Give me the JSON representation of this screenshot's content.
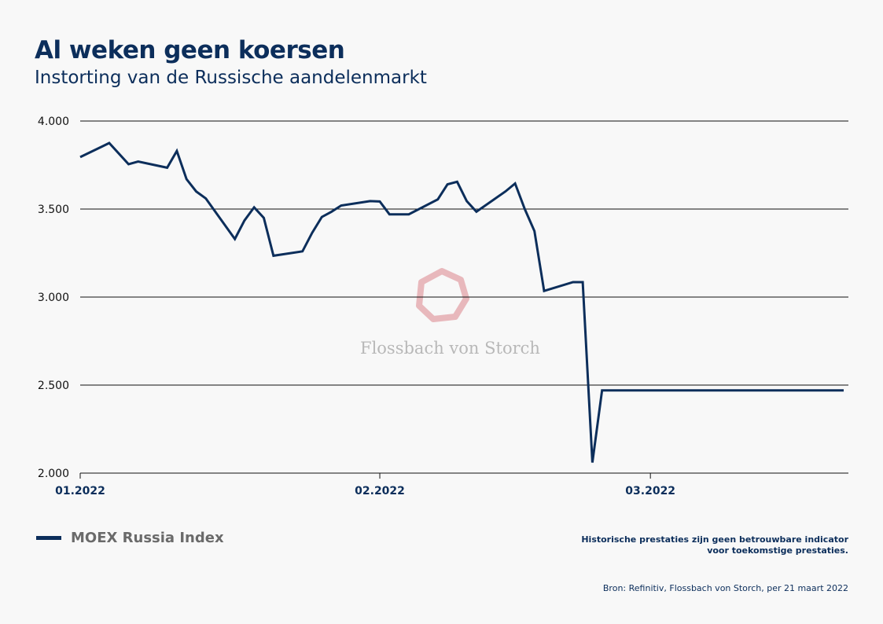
{
  "title": "Al weken geen koersen",
  "subtitle": "Instorting van de Russische aandelenmarkt",
  "legend": {
    "label": "MOEX Russia Index",
    "color": "#0c2e5b"
  },
  "disclaimer": "Historische prestaties zijn geen betrouwbare indicator voor toekomstige prestaties.",
  "source": "Bron: Refinitiv, Flossbach von Storch, per 21 maart 2022",
  "watermark": {
    "text": "Flossbach von Storch",
    "icon": "heptagon-logo-icon",
    "color": "#e8b8bc"
  },
  "chart_data": {
    "type": "line",
    "title": "Al weken geen koersen",
    "subtitle": "Instorting van de Russische aandelenmarkt",
    "xlabel": "",
    "ylabel": "",
    "ylim": [
      2000,
      4000
    ],
    "yticks": [
      2000,
      2500,
      3000,
      3500,
      4000
    ],
    "ytick_labels": [
      "2.000",
      "2.500",
      "3.000",
      "3.500",
      "4.000"
    ],
    "xlim": [
      "2022-01-01",
      "2022-03-21"
    ],
    "xticks": [
      "2022-01-01",
      "2022-02-01",
      "2022-03-01"
    ],
    "xtick_labels": [
      "01.2022",
      "02.2022",
      "03.2022"
    ],
    "grid": "horizontal",
    "legend_position": "bottom-left",
    "series": [
      {
        "name": "MOEX Russia Index",
        "color": "#0c2e5b",
        "x": [
          "2022-01-01",
          "2022-01-04",
          "2022-01-06",
          "2022-01-07",
          "2022-01-10",
          "2022-01-11",
          "2022-01-12",
          "2022-01-13",
          "2022-01-14",
          "2022-01-17",
          "2022-01-18",
          "2022-01-19",
          "2022-01-20",
          "2022-01-21",
          "2022-01-24",
          "2022-01-25",
          "2022-01-26",
          "2022-01-27",
          "2022-01-28",
          "2022-01-31",
          "2022-02-01",
          "2022-02-02",
          "2022-02-03",
          "2022-02-04",
          "2022-02-07",
          "2022-02-08",
          "2022-02-09",
          "2022-02-10",
          "2022-02-11",
          "2022-02-14",
          "2022-02-15",
          "2022-02-16",
          "2022-02-17",
          "2022-02-18",
          "2022-02-21",
          "2022-02-22",
          "2022-02-23",
          "2022-02-24",
          "2022-02-25",
          "2022-02-28",
          "2022-03-01",
          "2022-03-02",
          "2022-03-21"
        ],
        "values": [
          3795,
          3875,
          3755,
          3770,
          3735,
          3830,
          3670,
          3600,
          3560,
          3330,
          3435,
          3510,
          3450,
          3235,
          3260,
          3365,
          3455,
          3485,
          3520,
          3545,
          3543,
          3470,
          3470,
          3470,
          3555,
          3640,
          3655,
          3545,
          3485,
          3600,
          3645,
          3500,
          3375,
          3035,
          3085,
          3085,
          2060,
          2470,
          2470,
          2470,
          2470,
          2470,
          2470
        ]
      }
    ]
  }
}
